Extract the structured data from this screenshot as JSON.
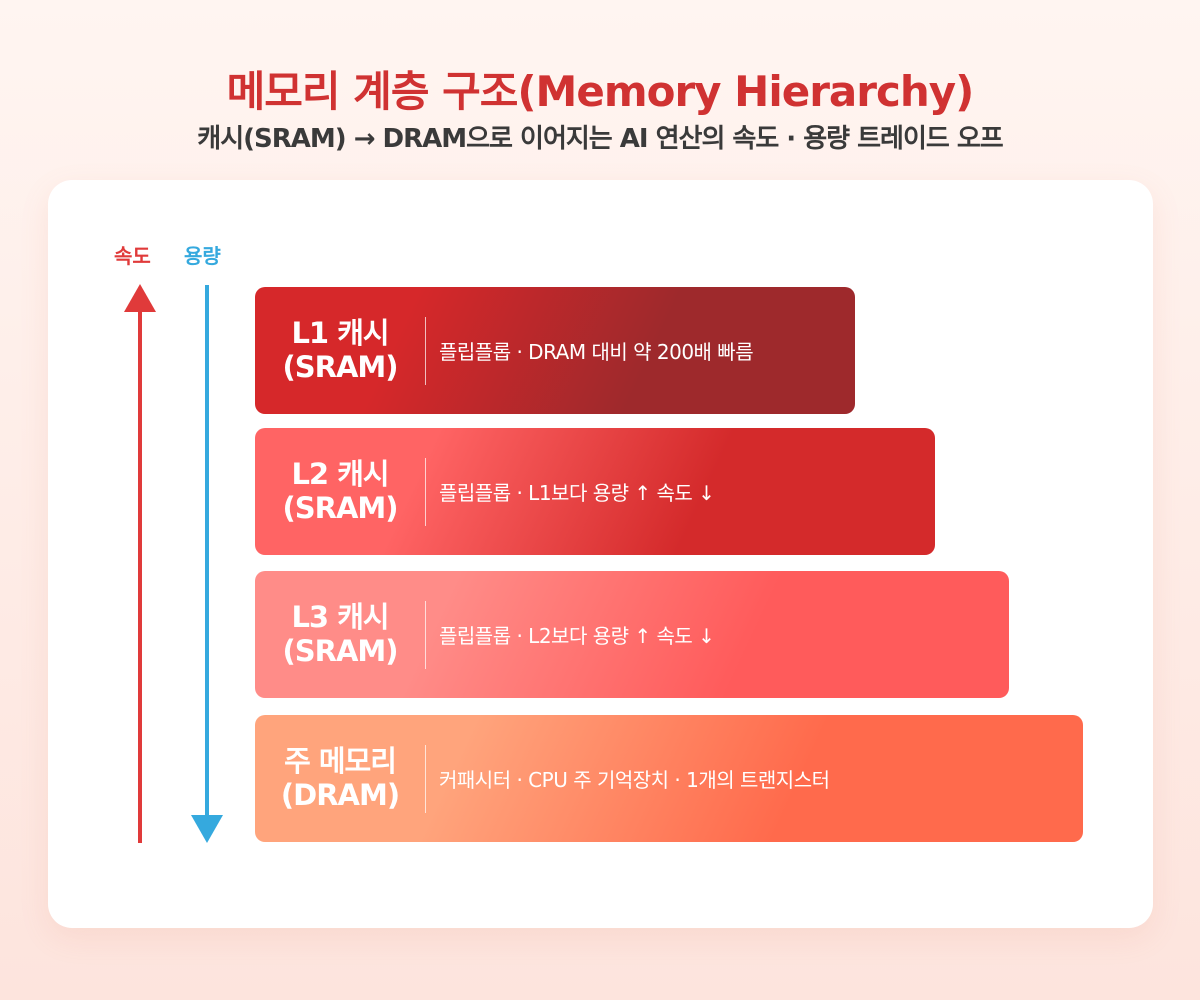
{
  "title": "메모리 계층 구조(Memory Hierarchy)",
  "subtitle": "캐시(SRAM) → DRAM으로 이어지는 AI 연산의 속도 · 용량 트레이드 오프",
  "axes": {
    "speed_label": "속도",
    "speed_color": "#e03a3a",
    "capacity_label": "용량",
    "capacity_color": "#35a9de"
  },
  "levels": [
    {
      "name_line1": "L1 캐시",
      "name_line2": "(SRAM)",
      "description": "플립플롭 · DRAM 대비 약 200배 빠름",
      "color_start": "#d6282a",
      "color_end": "#9e292c"
    },
    {
      "name_line1": "L2 캐시",
      "name_line2": "(SRAM)",
      "description": "플립플롭 · L1보다 용량 ↑ 속도 ↓",
      "color_start": "#ff6464",
      "color_end": "#d42a2b"
    },
    {
      "name_line1": "L3 캐시",
      "name_line2": "(SRAM)",
      "description": "플립플롭 · L2보다 용량 ↑ 속도 ↓",
      "color_start": "#ff8c88",
      "color_end": "#ff5b5b"
    },
    {
      "name_line1": "주 메모리",
      "name_line2": "(DRAM)",
      "description": "커패시터 · CPU 주 기억장치 · 1개의 트랜지스터",
      "color_start": "#ffa47c",
      "color_end": "#ff6a4c"
    }
  ]
}
